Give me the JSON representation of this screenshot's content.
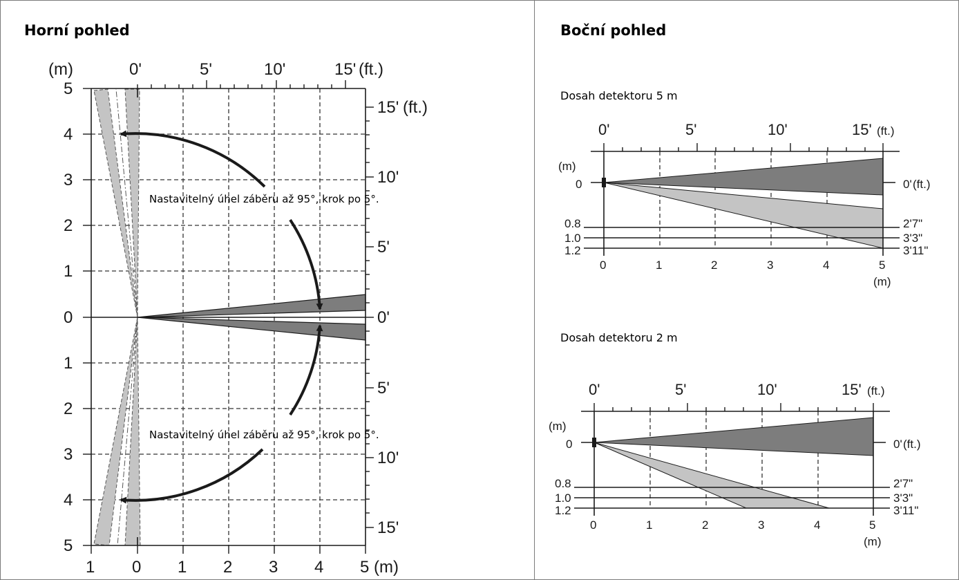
{
  "left_panel": {
    "heading": "Horní pohled",
    "m_unit": "(m)",
    "ft_unit": "(ft.)",
    "top_ft_ticks": [
      "0'",
      "5'",
      "10'",
      "15'"
    ],
    "left_m_ticks": [
      "5",
      "4",
      "3",
      "2",
      "1",
      "0",
      "1",
      "2",
      "3",
      "4",
      "5"
    ],
    "right_ft_ticks": [
      "15'",
      "10'",
      "5'",
      "0'",
      "5'",
      "10'",
      "15'"
    ],
    "bottom_m_ticks": [
      "1",
      "0",
      "1",
      "2",
      "3",
      "4",
      "5"
    ],
    "note_upper": "Nastavitelný úhel záběru až 95°, krok po 5°.",
    "note_lower": "Nastavitelný úhel záběru až 95°, krok po 5°."
  },
  "right_panel": {
    "heading": "Boční pohled",
    "m_unit": "(m)",
    "ft_unit": "(ft.)",
    "ft_ticks": [
      "0'",
      "5'",
      "10'",
      "15'"
    ],
    "m_ticks": [
      "0",
      "1",
      "2",
      "3",
      "4",
      "5"
    ],
    "height_labels_m": [
      "0",
      "0.8",
      "1.0",
      "1.2"
    ],
    "height_labels_ft": [
      "0'",
      "2'7\"",
      "3'3\"",
      "3'11\""
    ],
    "diagram_5m": {
      "title": "Dosah detektoru 5 m"
    },
    "diagram_2m": {
      "title": "Dosah detektoru 2 m"
    }
  },
  "colors": {
    "dark_beam": "#7d7d7d",
    "light_beam": "#c4c4c4",
    "line": "#1a1a1a",
    "border": "#7a7a7a"
  }
}
